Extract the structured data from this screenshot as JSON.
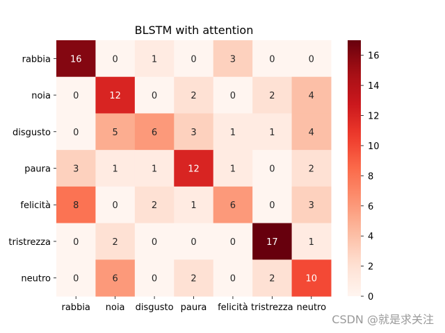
{
  "chart_data": {
    "type": "heatmap",
    "title": "BLSTM with attention",
    "xlabel": "",
    "ylabel": "",
    "row_labels": [
      "rabbia",
      "noia",
      "disgusto",
      "paura",
      "felicità",
      "tristrezza",
      "neutro"
    ],
    "col_labels": [
      "rabbia",
      "noia",
      "disgusto",
      "paura",
      "felicità",
      "tristrezza",
      "neutro"
    ],
    "values": [
      [
        16,
        0,
        1,
        0,
        3,
        0,
        0
      ],
      [
        0,
        12,
        0,
        2,
        0,
        2,
        4
      ],
      [
        0,
        5,
        6,
        3,
        1,
        1,
        4
      ],
      [
        3,
        1,
        1,
        12,
        1,
        0,
        2
      ],
      [
        8,
        0,
        2,
        1,
        6,
        0,
        3
      ],
      [
        0,
        2,
        0,
        0,
        0,
        17,
        1
      ],
      [
        0,
        6,
        0,
        2,
        0,
        2,
        10
      ]
    ],
    "colorbar": {
      "min": 0,
      "max": 17,
      "ticks": [
        0,
        2,
        4,
        6,
        8,
        10,
        12,
        14,
        16
      ],
      "colormap": "Reds",
      "low_color": "#fff5f0",
      "high_color": "#67000d"
    }
  },
  "watermark": "CSDN @就是求关注"
}
